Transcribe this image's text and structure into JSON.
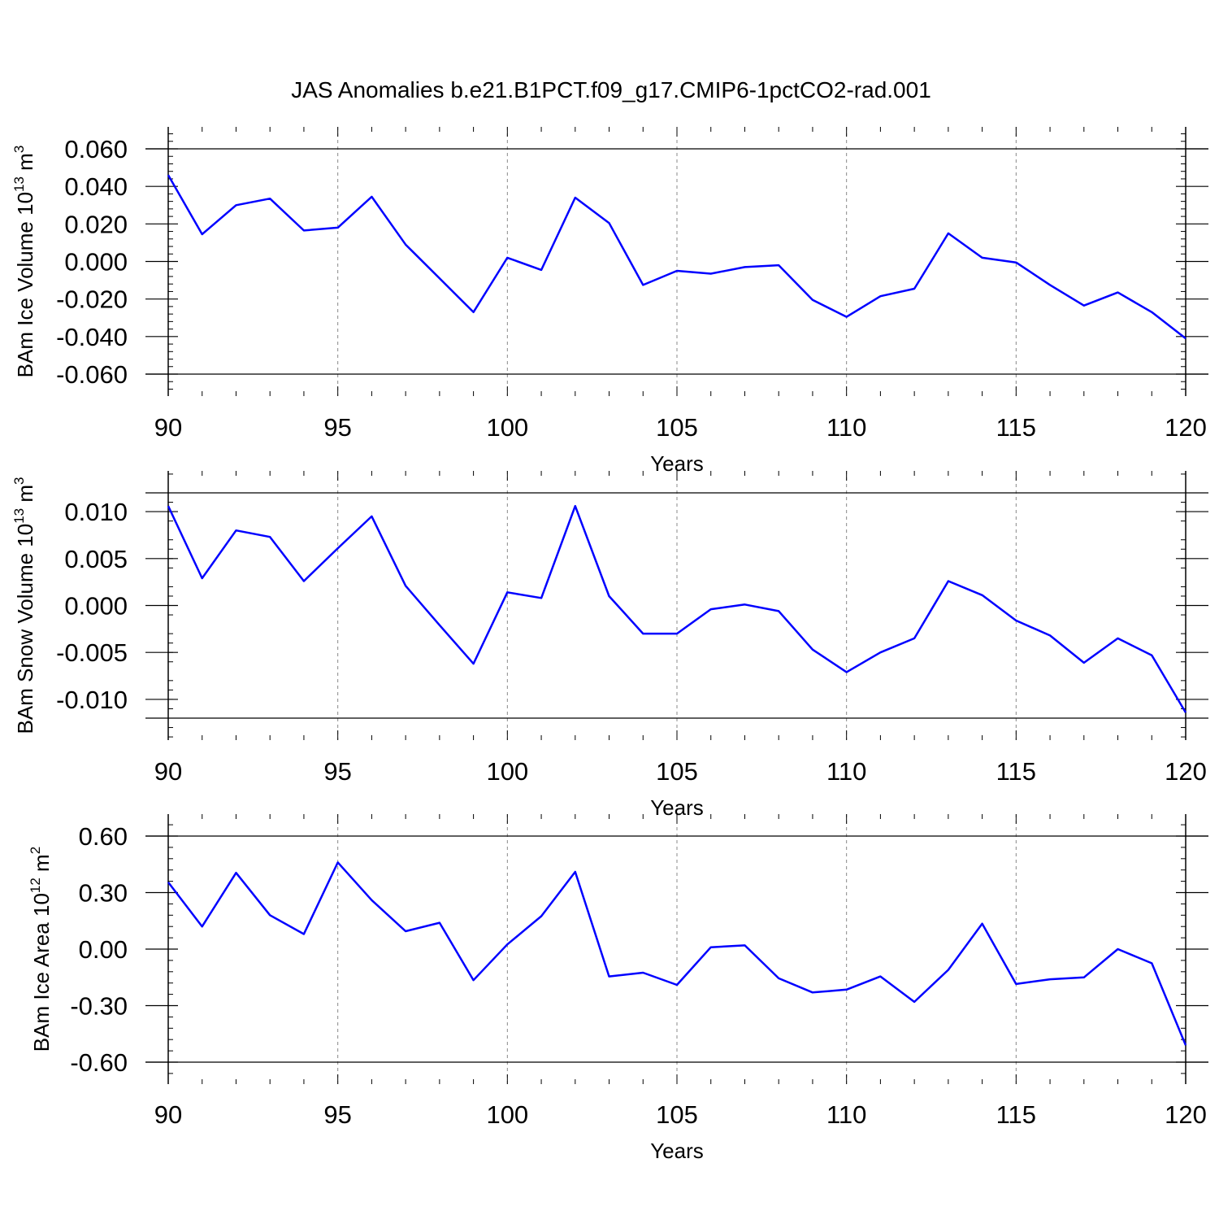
{
  "title": "JAS Anomalies b.e21.B1PCT.f09_g17.CMIP6-1pctCO2-rad.001",
  "colors": {
    "line": "#0000ff",
    "axis": "#000000",
    "grid": "#888888",
    "background": "#ffffff"
  },
  "chart_data": [
    {
      "type": "line",
      "ylabel": {
        "text": "BAm Ice Volume 10",
        "sup": "13",
        "unit": " m",
        "unit_sup": "3"
      },
      "xlabel": "Years",
      "xlim": [
        90,
        120
      ],
      "ylim": [
        -0.06,
        0.06
      ],
      "x_ticks": [
        90,
        95,
        100,
        105,
        110,
        115,
        120
      ],
      "x_tick_labels": [
        "90",
        "95",
        "100",
        "105",
        "110",
        "115",
        "120"
      ],
      "y_ticks": [
        0.06,
        0.04,
        0.02,
        0.0,
        -0.02,
        -0.04,
        -0.06
      ],
      "y_tick_labels": [
        "0.060",
        "0.040",
        "0.020",
        "0.000",
        "-0.020",
        "-0.040",
        "-0.060"
      ],
      "grid": "dashed vertical at major x ticks",
      "series": [
        {
          "x": [
            90,
            91,
            92,
            93,
            94,
            95,
            96,
            97,
            98,
            99,
            100,
            101,
            102,
            103,
            104,
            105,
            106,
            107,
            108,
            109,
            110,
            111,
            112,
            113,
            114,
            115,
            116,
            117,
            118,
            119,
            120
          ],
          "y": [
            0.046,
            0.0145,
            0.03,
            0.0335,
            0.0165,
            0.018,
            0.0345,
            0.009,
            -0.009,
            -0.027,
            0.002,
            -0.0045,
            0.034,
            0.0205,
            -0.0125,
            -0.005,
            -0.0065,
            -0.003,
            -0.002,
            -0.0205,
            -0.0295,
            -0.0185,
            -0.0145,
            0.015,
            0.002,
            -0.0005,
            -0.0125,
            -0.0235,
            -0.0165,
            -0.027,
            -0.041
          ]
        }
      ]
    },
    {
      "type": "line",
      "ylabel": {
        "text": "BAm Snow Volume 10",
        "sup": "13",
        "unit": " m",
        "unit_sup": "3"
      },
      "xlabel": "Years",
      "xlim": [
        90,
        120
      ],
      "ylim": [
        -0.012,
        0.012
      ],
      "x_ticks": [
        90,
        95,
        100,
        105,
        110,
        115,
        120
      ],
      "x_tick_labels": [
        "90",
        "95",
        "100",
        "105",
        "110",
        "115",
        "120"
      ],
      "y_ticks": [
        0.01,
        0.005,
        0.0,
        -0.005,
        -0.01
      ],
      "y_tick_labels": [
        "0.010",
        "0.005",
        "0.000",
        "-0.005",
        "-0.010"
      ],
      "grid": "dashed vertical at major x ticks",
      "series": [
        {
          "x": [
            90,
            91,
            92,
            93,
            94,
            95,
            96,
            97,
            98,
            99,
            100,
            101,
            102,
            103,
            104,
            105,
            106,
            107,
            108,
            109,
            110,
            111,
            112,
            113,
            114,
            115,
            116,
            117,
            118,
            119,
            120
          ],
          "y": [
            0.0106,
            0.0029,
            0.008,
            0.0073,
            0.0026,
            0.0061,
            0.0095,
            0.0021,
            -0.0021,
            -0.0062,
            0.0014,
            0.0008,
            0.0106,
            0.001,
            -0.003,
            -0.003,
            -0.0004,
            0.0001,
            -0.0006,
            -0.0047,
            -0.0071,
            -0.005,
            -0.0035,
            0.0026,
            0.0011,
            -0.0016,
            -0.0032,
            -0.0061,
            -0.0035,
            -0.0053,
            -0.0114
          ]
        }
      ]
    },
    {
      "type": "line",
      "ylabel": {
        "text": "BAm Ice Area 10",
        "sup": "12",
        "unit": " m",
        "unit_sup": "2"
      },
      "xlabel": "Years",
      "xlim": [
        90,
        120
      ],
      "ylim": [
        -0.6,
        0.6
      ],
      "x_ticks": [
        90,
        95,
        100,
        105,
        110,
        115,
        120
      ],
      "x_tick_labels": [
        "90",
        "95",
        "100",
        "105",
        "110",
        "115",
        "120"
      ],
      "y_ticks": [
        0.6,
        0.3,
        0.0,
        -0.3,
        -0.6
      ],
      "y_tick_labels": [
        "0.60",
        "0.30",
        "0.00",
        "-0.30",
        "-0.60"
      ],
      "grid": "dashed vertical at major x ticks",
      "series": [
        {
          "x": [
            90,
            91,
            92,
            93,
            94,
            95,
            96,
            97,
            98,
            99,
            100,
            101,
            102,
            103,
            104,
            105,
            106,
            107,
            108,
            109,
            110,
            111,
            112,
            113,
            114,
            115,
            116,
            117,
            118,
            119,
            120
          ],
          "y": [
            0.355,
            0.12,
            0.405,
            0.18,
            0.08,
            0.46,
            0.26,
            0.095,
            0.14,
            -0.165,
            0.025,
            0.175,
            0.41,
            -0.145,
            -0.125,
            -0.19,
            0.01,
            0.02,
            -0.155,
            -0.23,
            -0.215,
            -0.145,
            -0.28,
            -0.11,
            0.135,
            -0.185,
            -0.16,
            -0.15,
            0.0,
            -0.075,
            -0.51
          ]
        }
      ]
    }
  ]
}
